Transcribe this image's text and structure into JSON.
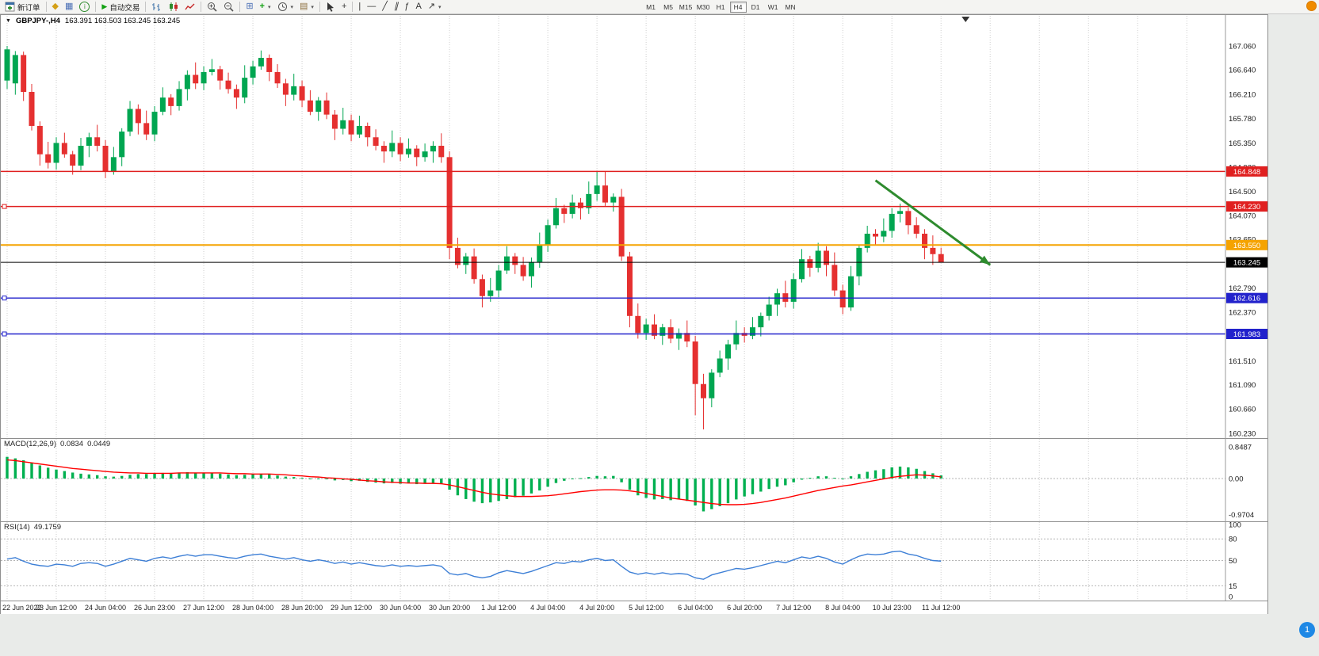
{
  "app": {
    "toolbar": {
      "new_order": "新订单",
      "autotrading": "自动交易",
      "timeframes": [
        "M1",
        "M5",
        "M15",
        "M30",
        "H1",
        "H4",
        "D1",
        "W1",
        "MN"
      ],
      "active_timeframe": "H4"
    }
  },
  "chart_title": {
    "symbol": "GBPJPY-,H4",
    "ohlc": "163.391 163.503 163.245 163.245"
  },
  "overlays": {
    "bottom_badge": "1"
  },
  "chart_data": {
    "type": "candlestick",
    "symbol": "GBPJPY-",
    "timeframe": "H4",
    "price_axis": {
      "min": 160.23,
      "max": 167.06,
      "ticks": [
        "167.060",
        "166.640",
        "166.210",
        "165.780",
        "165.350",
        "164.920",
        "164.500",
        "164.070",
        "163.650",
        "163.220",
        "162.790",
        "162.370",
        "161.940",
        "161.510",
        "161.090",
        "160.660",
        "160.230"
      ]
    },
    "time_ticks": [
      "22 Jun 2022",
      "23 Jun 12:00",
      "24 Jun 04:00",
      "26 Jun 23:00",
      "27 Jun 12:00",
      "28 Jun 04:00",
      "28 Jun 20:00",
      "29 Jun 12:00",
      "30 Jun 04:00",
      "30 Jun 20:00",
      "1 Jul 12:00",
      "4 Jul 04:00",
      "4 Jul 20:00",
      "5 Jul 12:00",
      "6 Jul 04:00",
      "6 Jul 20:00",
      "7 Jul 12:00",
      "8 Jul 04:00",
      "10 Jul 23:00",
      "11 Jul 12:00"
    ],
    "colors": {
      "up": "#00a651",
      "down": "#e53030",
      "grid": "#cfcfcf",
      "macd_hist": "#00b050",
      "macd_signal": "#ff0000",
      "rsi": "#3d7fd6"
    },
    "candles": {
      "open": [
        166.45,
        166.4,
        166.9,
        166.25,
        165.65,
        165.15,
        165.0,
        165.35,
        165.15,
        164.95,
        165.3,
        165.45,
        165.3,
        164.85,
        165.1,
        165.55,
        165.95,
        165.7,
        165.5,
        165.9,
        166.15,
        166.0,
        166.3,
        166.55,
        166.4,
        166.6,
        166.65,
        166.45,
        166.3,
        166.15,
        166.5,
        166.7,
        166.85,
        166.6,
        166.4,
        166.2,
        166.35,
        166.1,
        165.9,
        166.1,
        165.85,
        165.6,
        165.75,
        165.5,
        165.65,
        165.45,
        165.3,
        165.2,
        165.35,
        165.15,
        165.25,
        165.1,
        165.2,
        165.3,
        165.1,
        163.5,
        163.2,
        163.35,
        162.95,
        162.65,
        162.75,
        163.1,
        163.35,
        163.2,
        163.0,
        163.25,
        163.55,
        163.9,
        164.2,
        164.1,
        164.3,
        164.2,
        164.45,
        164.6,
        164.3,
        164.4,
        163.35,
        162.3,
        162.0,
        162.15,
        161.95,
        162.1,
        161.9,
        162.0,
        161.85,
        161.1,
        160.85,
        161.3,
        161.55,
        161.8,
        162.0,
        161.95,
        162.1,
        162.3,
        162.5,
        162.7,
        162.55,
        162.95,
        163.3,
        163.15,
        163.45,
        163.2,
        162.75,
        162.45,
        163.0,
        163.5,
        163.75,
        163.7,
        163.8,
        164.1,
        164.15,
        163.9,
        163.75,
        163.5,
        163.391
      ],
      "high": [
        167.06,
        166.97,
        166.96,
        166.39,
        165.73,
        165.37,
        165.45,
        165.53,
        165.21,
        165.44,
        165.53,
        165.67,
        165.4,
        165.28,
        165.61,
        166.09,
        166.03,
        165.92,
        166.0,
        166.33,
        166.21,
        166.44,
        166.63,
        166.77,
        166.7,
        166.83,
        166.71,
        166.59,
        166.38,
        166.72,
        166.8,
        166.98,
        166.91,
        166.74,
        166.48,
        166.57,
        166.45,
        166.28,
        166.16,
        166.24,
        165.93,
        165.97,
        165.85,
        165.83,
        165.71,
        165.59,
        165.38,
        165.57,
        165.45,
        165.43,
        165.31,
        165.34,
        165.38,
        165.52,
        165.2,
        163.68,
        163.41,
        163.49,
        163.03,
        162.97,
        163.2,
        163.53,
        163.41,
        163.34,
        163.33,
        163.77,
        164.0,
        164.38,
        164.26,
        164.44,
        164.38,
        164.67,
        164.85,
        164.84,
        164.46,
        164.54,
        163.43,
        162.52,
        162.25,
        162.33,
        162.16,
        162.24,
        162.08,
        162.22,
        161.95,
        161.28,
        161.36,
        161.69,
        161.88,
        162.22,
        162.1,
        162.28,
        162.36,
        162.64,
        162.78,
        162.92,
        163.05,
        163.48,
        163.36,
        163.59,
        163.53,
        163.42,
        162.85,
        163.18,
        163.56,
        163.89,
        163.83,
        164.02,
        164.2,
        164.28,
        164.21,
        164.04,
        163.83,
        163.72,
        163.503
      ],
      "low": [
        166.3,
        166.2,
        166.09,
        165.57,
        164.95,
        164.9,
        164.88,
        165.09,
        164.79,
        164.87,
        165.1,
        165.2,
        164.73,
        164.79,
        164.94,
        165.47,
        165.5,
        165.4,
        165.38,
        165.84,
        165.84,
        165.92,
        166.1,
        166.3,
        166.28,
        166.54,
        166.29,
        166.22,
        165.95,
        166.05,
        166.38,
        166.64,
        166.44,
        166.32,
        166.0,
        166.1,
        165.98,
        165.84,
        165.74,
        165.77,
        165.4,
        165.5,
        165.38,
        165.44,
        165.29,
        165.22,
        165.0,
        165.1,
        165.03,
        165.09,
        164.94,
        165.02,
        165.0,
        165.0,
        163.3,
        163.14,
        163.04,
        162.87,
        162.45,
        162.55,
        162.63,
        163.04,
        163.04,
        162.92,
        162.8,
        163.15,
        163.43,
        163.84,
        163.94,
        164.02,
        164.0,
        164.1,
        164.33,
        164.24,
        164.14,
        163.27,
        162.1,
        161.9,
        161.88,
        161.89,
        161.79,
        161.82,
        161.7,
        161.75,
        160.55,
        160.3,
        160.69,
        161.22,
        161.35,
        161.7,
        161.83,
        161.89,
        161.94,
        162.22,
        162.3,
        162.45,
        162.43,
        162.89,
        162.99,
        163.07,
        163.0,
        162.65,
        162.33,
        162.39,
        162.84,
        163.42,
        163.55,
        163.6,
        163.68,
        163.95,
        163.74,
        163.67,
        163.3,
        163.2,
        163.245
      ],
      "close": [
        167.0,
        166.9,
        166.25,
        165.65,
        165.15,
        165.0,
        165.35,
        165.15,
        164.95,
        165.3,
        165.45,
        165.3,
        164.85,
        165.1,
        165.55,
        165.95,
        165.7,
        165.5,
        165.9,
        166.15,
        166.0,
        166.3,
        166.55,
        166.4,
        166.6,
        166.65,
        166.45,
        166.3,
        166.15,
        166.5,
        166.7,
        166.85,
        166.6,
        166.4,
        166.2,
        166.35,
        166.1,
        165.9,
        166.1,
        165.85,
        165.6,
        165.75,
        165.5,
        165.65,
        165.45,
        165.3,
        165.2,
        165.35,
        165.15,
        165.25,
        165.1,
        165.2,
        165.3,
        165.1,
        163.5,
        163.2,
        163.35,
        162.95,
        162.65,
        162.75,
        163.1,
        163.35,
        163.2,
        163.0,
        163.25,
        163.55,
        163.9,
        164.2,
        164.1,
        164.3,
        164.2,
        164.45,
        164.6,
        164.3,
        164.4,
        163.35,
        162.3,
        162.0,
        162.15,
        161.95,
        162.1,
        161.9,
        162.0,
        161.85,
        161.1,
        160.85,
        161.3,
        161.55,
        161.8,
        162.0,
        161.95,
        162.1,
        162.3,
        162.5,
        162.7,
        162.55,
        162.95,
        163.3,
        163.15,
        163.45,
        163.2,
        162.75,
        162.45,
        163.0,
        163.5,
        163.75,
        163.7,
        163.8,
        164.1,
        164.15,
        163.9,
        163.75,
        163.5,
        163.39,
        163.245
      ]
    },
    "hlines": [
      {
        "price": 164.848,
        "label": "164.848",
        "color": "#e02020",
        "w": 1.4,
        "marker": false
      },
      {
        "price": 164.23,
        "label": "164.230",
        "color": "#e02020",
        "w": 1.4,
        "marker": true
      },
      {
        "price": 163.55,
        "label": "163.550",
        "color": "#f5a300",
        "w": 2,
        "marker": false
      },
      {
        "price": 163.245,
        "label": "163.245",
        "color": "#000000",
        "w": 1,
        "marker": false
      },
      {
        "price": 162.616,
        "label": "162.616",
        "color": "#2222cc",
        "w": 1.4,
        "marker": true
      },
      {
        "price": 161.983,
        "label": "161.983",
        "color": "#2222cc",
        "w": 1.4,
        "marker": true
      }
    ],
    "arrow": {
      "from_bar": 106,
      "from_price": 164.69,
      "to_bar": 120,
      "to_price": 163.2,
      "color": "#2e8b2e"
    },
    "shift_marker_bar": 117,
    "macd": {
      "name": "MACD(12,26,9)",
      "value1": "0.0834",
      "value2": "0.0449",
      "axis_ticks": [
        "0.8487",
        "0.00",
        "-0.9704"
      ],
      "hist": [
        0.58,
        0.54,
        0.49,
        0.42,
        0.35,
        0.29,
        0.24,
        0.2,
        0.16,
        0.13,
        0.11,
        0.09,
        0.06,
        0.05,
        0.07,
        0.1,
        0.12,
        0.12,
        0.13,
        0.15,
        0.15,
        0.16,
        0.17,
        0.16,
        0.16,
        0.15,
        0.13,
        0.11,
        0.09,
        0.1,
        0.12,
        0.13,
        0.11,
        0.08,
        0.05,
        0.04,
        0.02,
        -0.01,
        0.0,
        -0.02,
        -0.05,
        -0.04,
        -0.07,
        -0.06,
        -0.09,
        -0.11,
        -0.13,
        -0.12,
        -0.14,
        -0.13,
        -0.15,
        -0.14,
        -0.13,
        -0.15,
        -0.3,
        -0.45,
        -0.55,
        -0.62,
        -0.66,
        -0.64,
        -0.6,
        -0.55,
        -0.5,
        -0.46,
        -0.4,
        -0.32,
        -0.22,
        -0.12,
        -0.06,
        -0.02,
        0.01,
        0.04,
        0.07,
        0.06,
        0.07,
        -0.1,
        -0.3,
        -0.45,
        -0.52,
        -0.56,
        -0.55,
        -0.58,
        -0.56,
        -0.6,
        -0.72,
        -0.88,
        -0.82,
        -0.74,
        -0.66,
        -0.56,
        -0.48,
        -0.42,
        -0.35,
        -0.28,
        -0.22,
        -0.18,
        -0.1,
        -0.03,
        0.02,
        0.06,
        0.06,
        0.02,
        -0.02,
        0.06,
        0.12,
        0.18,
        0.22,
        0.25,
        0.3,
        0.32,
        0.3,
        0.26,
        0.2,
        0.14,
        0.0834
      ],
      "signal": [
        0.5,
        0.48,
        0.45,
        0.42,
        0.39,
        0.36,
        0.33,
        0.3,
        0.27,
        0.25,
        0.23,
        0.21,
        0.19,
        0.17,
        0.16,
        0.15,
        0.15,
        0.14,
        0.14,
        0.14,
        0.14,
        0.15,
        0.15,
        0.15,
        0.15,
        0.15,
        0.15,
        0.14,
        0.13,
        0.13,
        0.12,
        0.12,
        0.12,
        0.11,
        0.1,
        0.08,
        0.07,
        0.05,
        0.04,
        0.02,
        0.01,
        -0.01,
        -0.02,
        -0.04,
        -0.06,
        -0.07,
        -0.09,
        -0.1,
        -0.11,
        -0.12,
        -0.12,
        -0.13,
        -0.13,
        -0.14,
        -0.17,
        -0.22,
        -0.27,
        -0.32,
        -0.37,
        -0.41,
        -0.44,
        -0.46,
        -0.48,
        -0.48,
        -0.48,
        -0.47,
        -0.46,
        -0.44,
        -0.41,
        -0.38,
        -0.35,
        -0.33,
        -0.31,
        -0.3,
        -0.3,
        -0.31,
        -0.33,
        -0.36,
        -0.4,
        -0.44,
        -0.48,
        -0.52,
        -0.55,
        -0.58,
        -0.61,
        -0.64,
        -0.67,
        -0.69,
        -0.7,
        -0.7,
        -0.69,
        -0.67,
        -0.64,
        -0.6,
        -0.56,
        -0.52,
        -0.47,
        -0.42,
        -0.37,
        -0.32,
        -0.28,
        -0.24,
        -0.2,
        -0.17,
        -0.13,
        -0.09,
        -0.05,
        -0.01,
        0.03,
        0.06,
        0.08,
        0.1,
        0.09,
        0.07,
        0.0449
      ]
    },
    "rsi": {
      "name": "RSI(14)",
      "value": "49.1759",
      "axis_ticks": [
        100,
        80,
        50,
        15,
        0
      ],
      "levels": [
        80,
        50,
        15
      ],
      "series": [
        52,
        54,
        49,
        45,
        43,
        42,
        45,
        44,
        42,
        46,
        47,
        46,
        42,
        45,
        49,
        53,
        51,
        49,
        53,
        55,
        53,
        56,
        58,
        56,
        58,
        58,
        56,
        54,
        53,
        56,
        58,
        59,
        56,
        54,
        52,
        54,
        51,
        49,
        51,
        49,
        46,
        48,
        45,
        47,
        45,
        43,
        42,
        44,
        42,
        43,
        42,
        43,
        44,
        42,
        32,
        30,
        32,
        28,
        26,
        28,
        33,
        36,
        34,
        32,
        35,
        39,
        43,
        47,
        46,
        49,
        48,
        51,
        53,
        50,
        51,
        42,
        34,
        31,
        33,
        31,
        33,
        31,
        32,
        31,
        26,
        24,
        30,
        33,
        36,
        39,
        38,
        40,
        43,
        46,
        49,
        47,
        51,
        55,
        53,
        56,
        53,
        48,
        45,
        51,
        56,
        59,
        58,
        59,
        62,
        63,
        59,
        57,
        53,
        50,
        49.18
      ]
    }
  }
}
